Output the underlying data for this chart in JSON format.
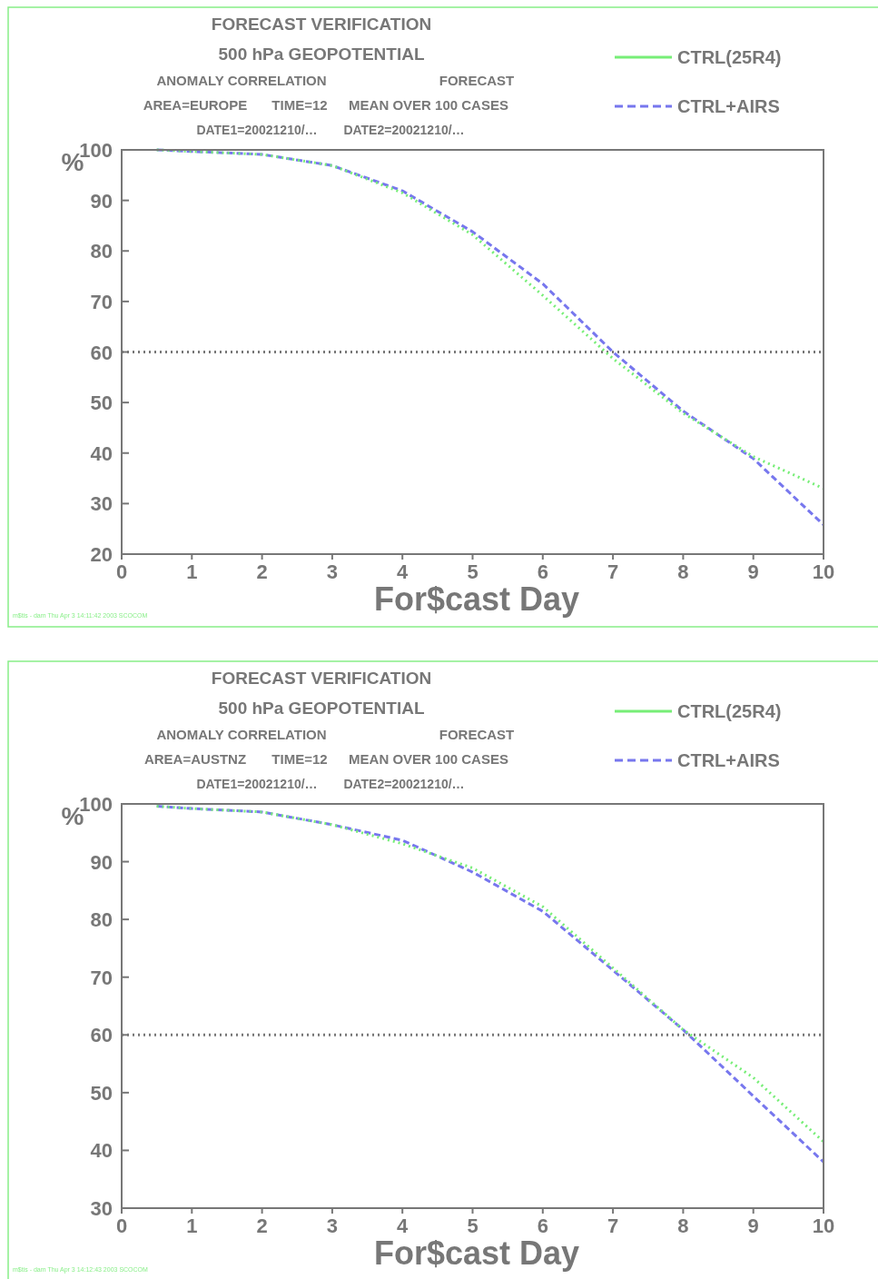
{
  "chart_data": [
    {
      "type": "line",
      "title": "FORECAST VERIFICATION",
      "subtitle": "500 hPa GEOPOTENTIAL",
      "xlabel": "For$cast Day",
      "ylabel": "%",
      "annotations": [
        "ANOMALY CORRELATION",
        "FORECAST",
        "AREA=EUROPE",
        "TIME=12",
        "MEAN OVER 100 CASES",
        "DATE1=20021210/…",
        "DATE2=20021210/…",
        "m$tis - dam Thu Apr  3 14:11:42 2003 SCOCOM"
      ],
      "x": [
        0.5,
        1,
        2,
        3,
        4,
        5,
        6,
        7,
        8,
        9,
        10
      ],
      "series": [
        {
          "name": "CTRL(25R4)",
          "color": "#77ee77",
          "line_style": "dotted",
          "values": [
            100,
            99.7,
            99.1,
            96.9,
            91.5,
            83.2,
            71.2,
            58.7,
            47.9,
            39.3,
            33.0
          ]
        },
        {
          "name": "CTRL+AIRS",
          "color": "#7777ee",
          "line_style": "dashed",
          "values": [
            100,
            99.7,
            99.1,
            96.9,
            91.9,
            83.8,
            73.5,
            60.0,
            48.3,
            38.9,
            25.8
          ]
        }
      ],
      "xlim": [
        0,
        10
      ],
      "xticks": [
        0,
        1,
        2,
        3,
        4,
        5,
        6,
        7,
        8,
        9,
        10
      ],
      "ylim": [
        20,
        100
      ],
      "yticks": [
        20,
        30,
        40,
        50,
        60,
        70,
        80,
        90,
        100
      ],
      "ref_lines": [
        {
          "axis": "y",
          "value": 60,
          "color": "#777777",
          "line_style": "dotted"
        }
      ],
      "grid": false,
      "legend": "top right",
      "marker": "none"
    },
    {
      "type": "line",
      "title": "FORECAST VERIFICATION",
      "subtitle": "500 hPa GEOPOTENTIAL",
      "xlabel": "For$cast Day",
      "ylabel": "%",
      "annotations": [
        "ANOMALY CORRELATION",
        "FORECAST",
        "AREA=AUSTNZ",
        "TIME=12",
        "MEAN OVER 100 CASES",
        "DATE1=20021210/…",
        "DATE2=20021210/…",
        "m$tis - dam Thu Apr  3 14:12:43 2003 SCOCOM"
      ],
      "x": [
        0.5,
        1,
        2,
        3,
        4,
        5,
        6,
        7,
        8,
        9,
        10
      ],
      "series": [
        {
          "name": "CTRL(25R4)",
          "color": "#77ee77",
          "line_style": "dotted",
          "values": [
            99.6,
            99.2,
            98.6,
            96.4,
            93.1,
            88.9,
            82.2,
            71.6,
            60.9,
            52.6,
            41.5
          ]
        },
        {
          "name": "CTRL+AIRS",
          "color": "#7777ee",
          "line_style": "dashed",
          "values": [
            99.6,
            99.2,
            98.6,
            96.4,
            93.7,
            88.2,
            81.4,
            71.2,
            60.9,
            49.4,
            38.0
          ]
        }
      ],
      "xlim": [
        0,
        10
      ],
      "xticks": [
        0,
        1,
        2,
        3,
        4,
        5,
        6,
        7,
        8,
        9,
        10
      ],
      "ylim": [
        30,
        100
      ],
      "yticks": [
        30,
        40,
        50,
        60,
        70,
        80,
        90,
        100
      ],
      "ref_lines": [
        {
          "axis": "y",
          "value": 60,
          "color": "#777777",
          "line_style": "dotted"
        }
      ],
      "grid": false,
      "legend": "top right",
      "marker": "none"
    }
  ]
}
